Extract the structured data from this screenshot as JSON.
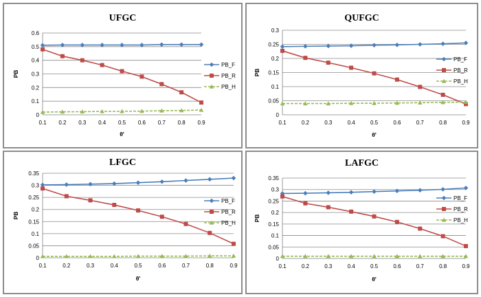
{
  "chart_data": [
    {
      "type": "line",
      "title": "UFGC",
      "xlabel": "θ'",
      "ylabel": "PB",
      "x": [
        0.1,
        0.2,
        0.3,
        0.4,
        0.5,
        0.6,
        0.7,
        0.8,
        0.9
      ],
      "xticks": [
        "0.1",
        "0.2",
        "0.3",
        "0.4",
        "0.5",
        "0.6",
        "0.7",
        "0.8",
        "0.9"
      ],
      "ylim": [
        0,
        0.6
      ],
      "yticks": [
        0,
        0.1,
        0.2,
        0.3,
        0.4,
        0.5,
        0.6
      ],
      "ytick_labels": [
        "0",
        "0.1",
        "0.2",
        "0.3",
        "0.4",
        "0.5",
        "0.6"
      ],
      "grid": true,
      "legend": "right",
      "series": [
        {
          "name": "PB_F",
          "color": "#4a7ebb",
          "marker": "diamond",
          "values": [
            0.51,
            0.512,
            0.512,
            0.512,
            0.512,
            0.512,
            0.515,
            0.515,
            0.515
          ]
        },
        {
          "name": "PB_R",
          "color": "#be4b48",
          "marker": "square",
          "values": [
            0.48,
            0.43,
            0.4,
            0.365,
            0.32,
            0.28,
            0.225,
            0.165,
            0.09
          ]
        },
        {
          "name": "PB_H",
          "color": "#98b954",
          "marker": "triangle",
          "dashed": true,
          "values": [
            0.02,
            0.022,
            0.023,
            0.025,
            0.026,
            0.027,
            0.03,
            0.032,
            0.035
          ]
        }
      ]
    },
    {
      "type": "line",
      "title": "QUFGC",
      "xlabel": "θ'",
      "ylabel": "PB",
      "x": [
        0.1,
        0.2,
        0.3,
        0.4,
        0.5,
        0.6,
        0.7,
        0.8,
        0.9
      ],
      "xticks": [
        "0.1",
        "0.2",
        "0.3",
        "0.4",
        "0.5",
        "0.6",
        "0.7",
        "0.8",
        "0.9"
      ],
      "ylim": [
        0,
        0.3
      ],
      "yticks": [
        0,
        0.05,
        0.1,
        0.15,
        0.2,
        0.25,
        0.3
      ],
      "ytick_labels": [
        "0",
        "0.05",
        "0.1",
        "0.15",
        "0.2",
        "0.25",
        "0.3"
      ],
      "grid": true,
      "legend": "right",
      "series": [
        {
          "name": "PB_F",
          "color": "#4a7ebb",
          "marker": "diamond",
          "values": [
            0.242,
            0.243,
            0.244,
            0.245,
            0.247,
            0.248,
            0.25,
            0.252,
            0.255
          ]
        },
        {
          "name": "PB_R",
          "color": "#be4b48",
          "marker": "square",
          "values": [
            0.227,
            0.202,
            0.185,
            0.167,
            0.147,
            0.125,
            0.099,
            0.071,
            0.038
          ]
        },
        {
          "name": "PB_H",
          "color": "#98b954",
          "marker": "triangle",
          "dashed": true,
          "values": [
            0.04,
            0.04,
            0.04,
            0.041,
            0.041,
            0.042,
            0.043,
            0.044,
            0.045
          ]
        }
      ]
    },
    {
      "type": "line",
      "title": "LFGC",
      "xlabel": "θ'",
      "ylabel": "PB",
      "x": [
        0.1,
        0.2,
        0.3,
        0.4,
        0.5,
        0.6,
        0.7,
        0.8,
        0.9
      ],
      "xticks": [
        "0.1",
        "0.2",
        "0.3",
        "0.4",
        "0.5",
        "0.6",
        "0.7",
        "0.8",
        "0.9"
      ],
      "ylim": [
        0,
        0.35
      ],
      "yticks": [
        0,
        0.05,
        0.1,
        0.15,
        0.2,
        0.25,
        0.3,
        0.35
      ],
      "ytick_labels": [
        "0",
        "0.05",
        "0.1",
        "0.15",
        "0.2",
        "0.25",
        "0.3",
        "0.35"
      ],
      "grid": true,
      "legend": "right",
      "series": [
        {
          "name": "PB_F",
          "color": "#4a7ebb",
          "marker": "diamond",
          "values": [
            0.302,
            0.303,
            0.305,
            0.307,
            0.311,
            0.315,
            0.32,
            0.325,
            0.33
          ]
        },
        {
          "name": "PB_R",
          "color": "#be4b48",
          "marker": "square",
          "values": [
            0.287,
            0.255,
            0.238,
            0.219,
            0.196,
            0.17,
            0.14,
            0.103,
            0.058
          ]
        },
        {
          "name": "PB_H",
          "color": "#98b954",
          "marker": "triangle",
          "dashed": true,
          "values": [
            0.006,
            0.006,
            0.006,
            0.006,
            0.007,
            0.007,
            0.007,
            0.008,
            0.008
          ]
        }
      ]
    },
    {
      "type": "line",
      "title": "LAFGC",
      "xlabel": "θ'",
      "ylabel": "PB",
      "x": [
        0.1,
        0.2,
        0.3,
        0.4,
        0.5,
        0.6,
        0.7,
        0.8,
        0.9
      ],
      "xticks": [
        "0.1",
        "0.2",
        "0.3",
        "0.4",
        "0.5",
        "0.6",
        "0.7",
        "0.8",
        "0.9"
      ],
      "ylim": [
        0,
        0.35
      ],
      "yticks": [
        0,
        0.05,
        0.1,
        0.15,
        0.2,
        0.25,
        0.3,
        0.35
      ],
      "ytick_labels": [
        "0",
        "0.05",
        "0.1",
        "0.15",
        "0.2",
        "0.25",
        "0.3",
        "0.35"
      ],
      "grid": true,
      "legend": "right",
      "series": [
        {
          "name": "PB_F",
          "color": "#4a7ebb",
          "marker": "diamond",
          "values": [
            0.283,
            0.284,
            0.286,
            0.288,
            0.291,
            0.294,
            0.297,
            0.301,
            0.307
          ]
        },
        {
          "name": "PB_R",
          "color": "#be4b48",
          "marker": "square",
          "values": [
            0.27,
            0.24,
            0.223,
            0.204,
            0.183,
            0.159,
            0.13,
            0.097,
            0.054
          ]
        },
        {
          "name": "PB_H",
          "color": "#98b954",
          "marker": "triangle",
          "dashed": true,
          "values": [
            0.01,
            0.01,
            0.01,
            0.01,
            0.01,
            0.01,
            0.01,
            0.01,
            0.01
          ]
        }
      ]
    }
  ]
}
